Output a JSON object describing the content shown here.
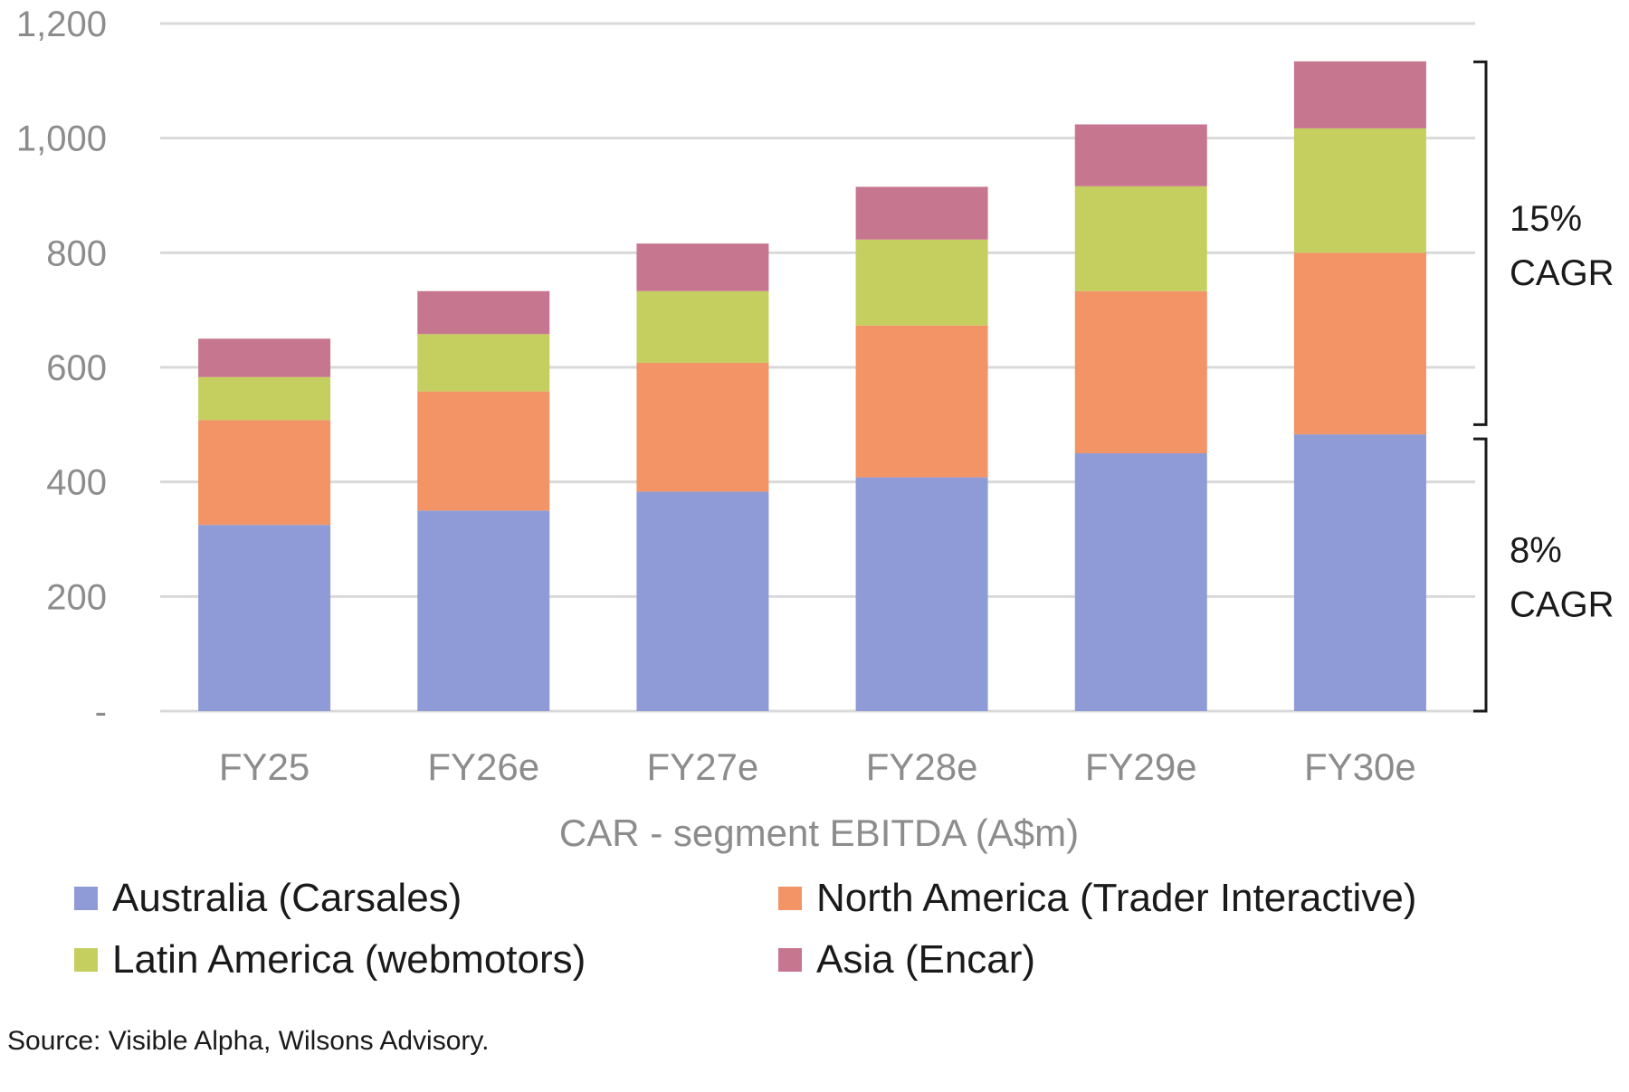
{
  "chart_data": {
    "type": "bar",
    "stacked": true,
    "categories": [
      "FY25",
      "FY26e",
      "FY27e",
      "FY28e",
      "FY29e",
      "FY30e"
    ],
    "series": [
      {
        "name": "Australia (Carsales)",
        "color": "#8f9bd6",
        "values": [
          325,
          350,
          383,
          408,
          450,
          483
        ]
      },
      {
        "name": "North America (Trader Interactive)",
        "color": "#f29465",
        "values": [
          183,
          208,
          225,
          265,
          283,
          317
        ]
      },
      {
        "name": "Latin America (webmotors)",
        "color": "#c5cf60",
        "values": [
          75,
          100,
          125,
          150,
          183,
          217
        ]
      },
      {
        "name": "Asia (Encar)",
        "color": "#c7768f",
        "values": [
          67,
          75,
          83,
          92,
          108,
          117
        ]
      }
    ],
    "xlabel": "CAR - segment EBITDA (A$m)",
    "ylim": [
      0,
      1200
    ],
    "yticks": [
      0,
      200,
      400,
      600,
      800,
      1000,
      1200
    ],
    "ytick_labels": [
      "-",
      "200",
      "400",
      "600",
      "800",
      "1,000",
      "1,200"
    ],
    "grid": true,
    "legend_position": "bottom",
    "annotations": [
      {
        "label_line1": "15%",
        "label_line2": "CAGR",
        "from": 500,
        "to": 1133
      },
      {
        "label_line1": "8%",
        "label_line2": "CAGR",
        "from": 0,
        "to": 475
      }
    ]
  },
  "source": "Source: Visible Alpha, Wilsons Advisory."
}
